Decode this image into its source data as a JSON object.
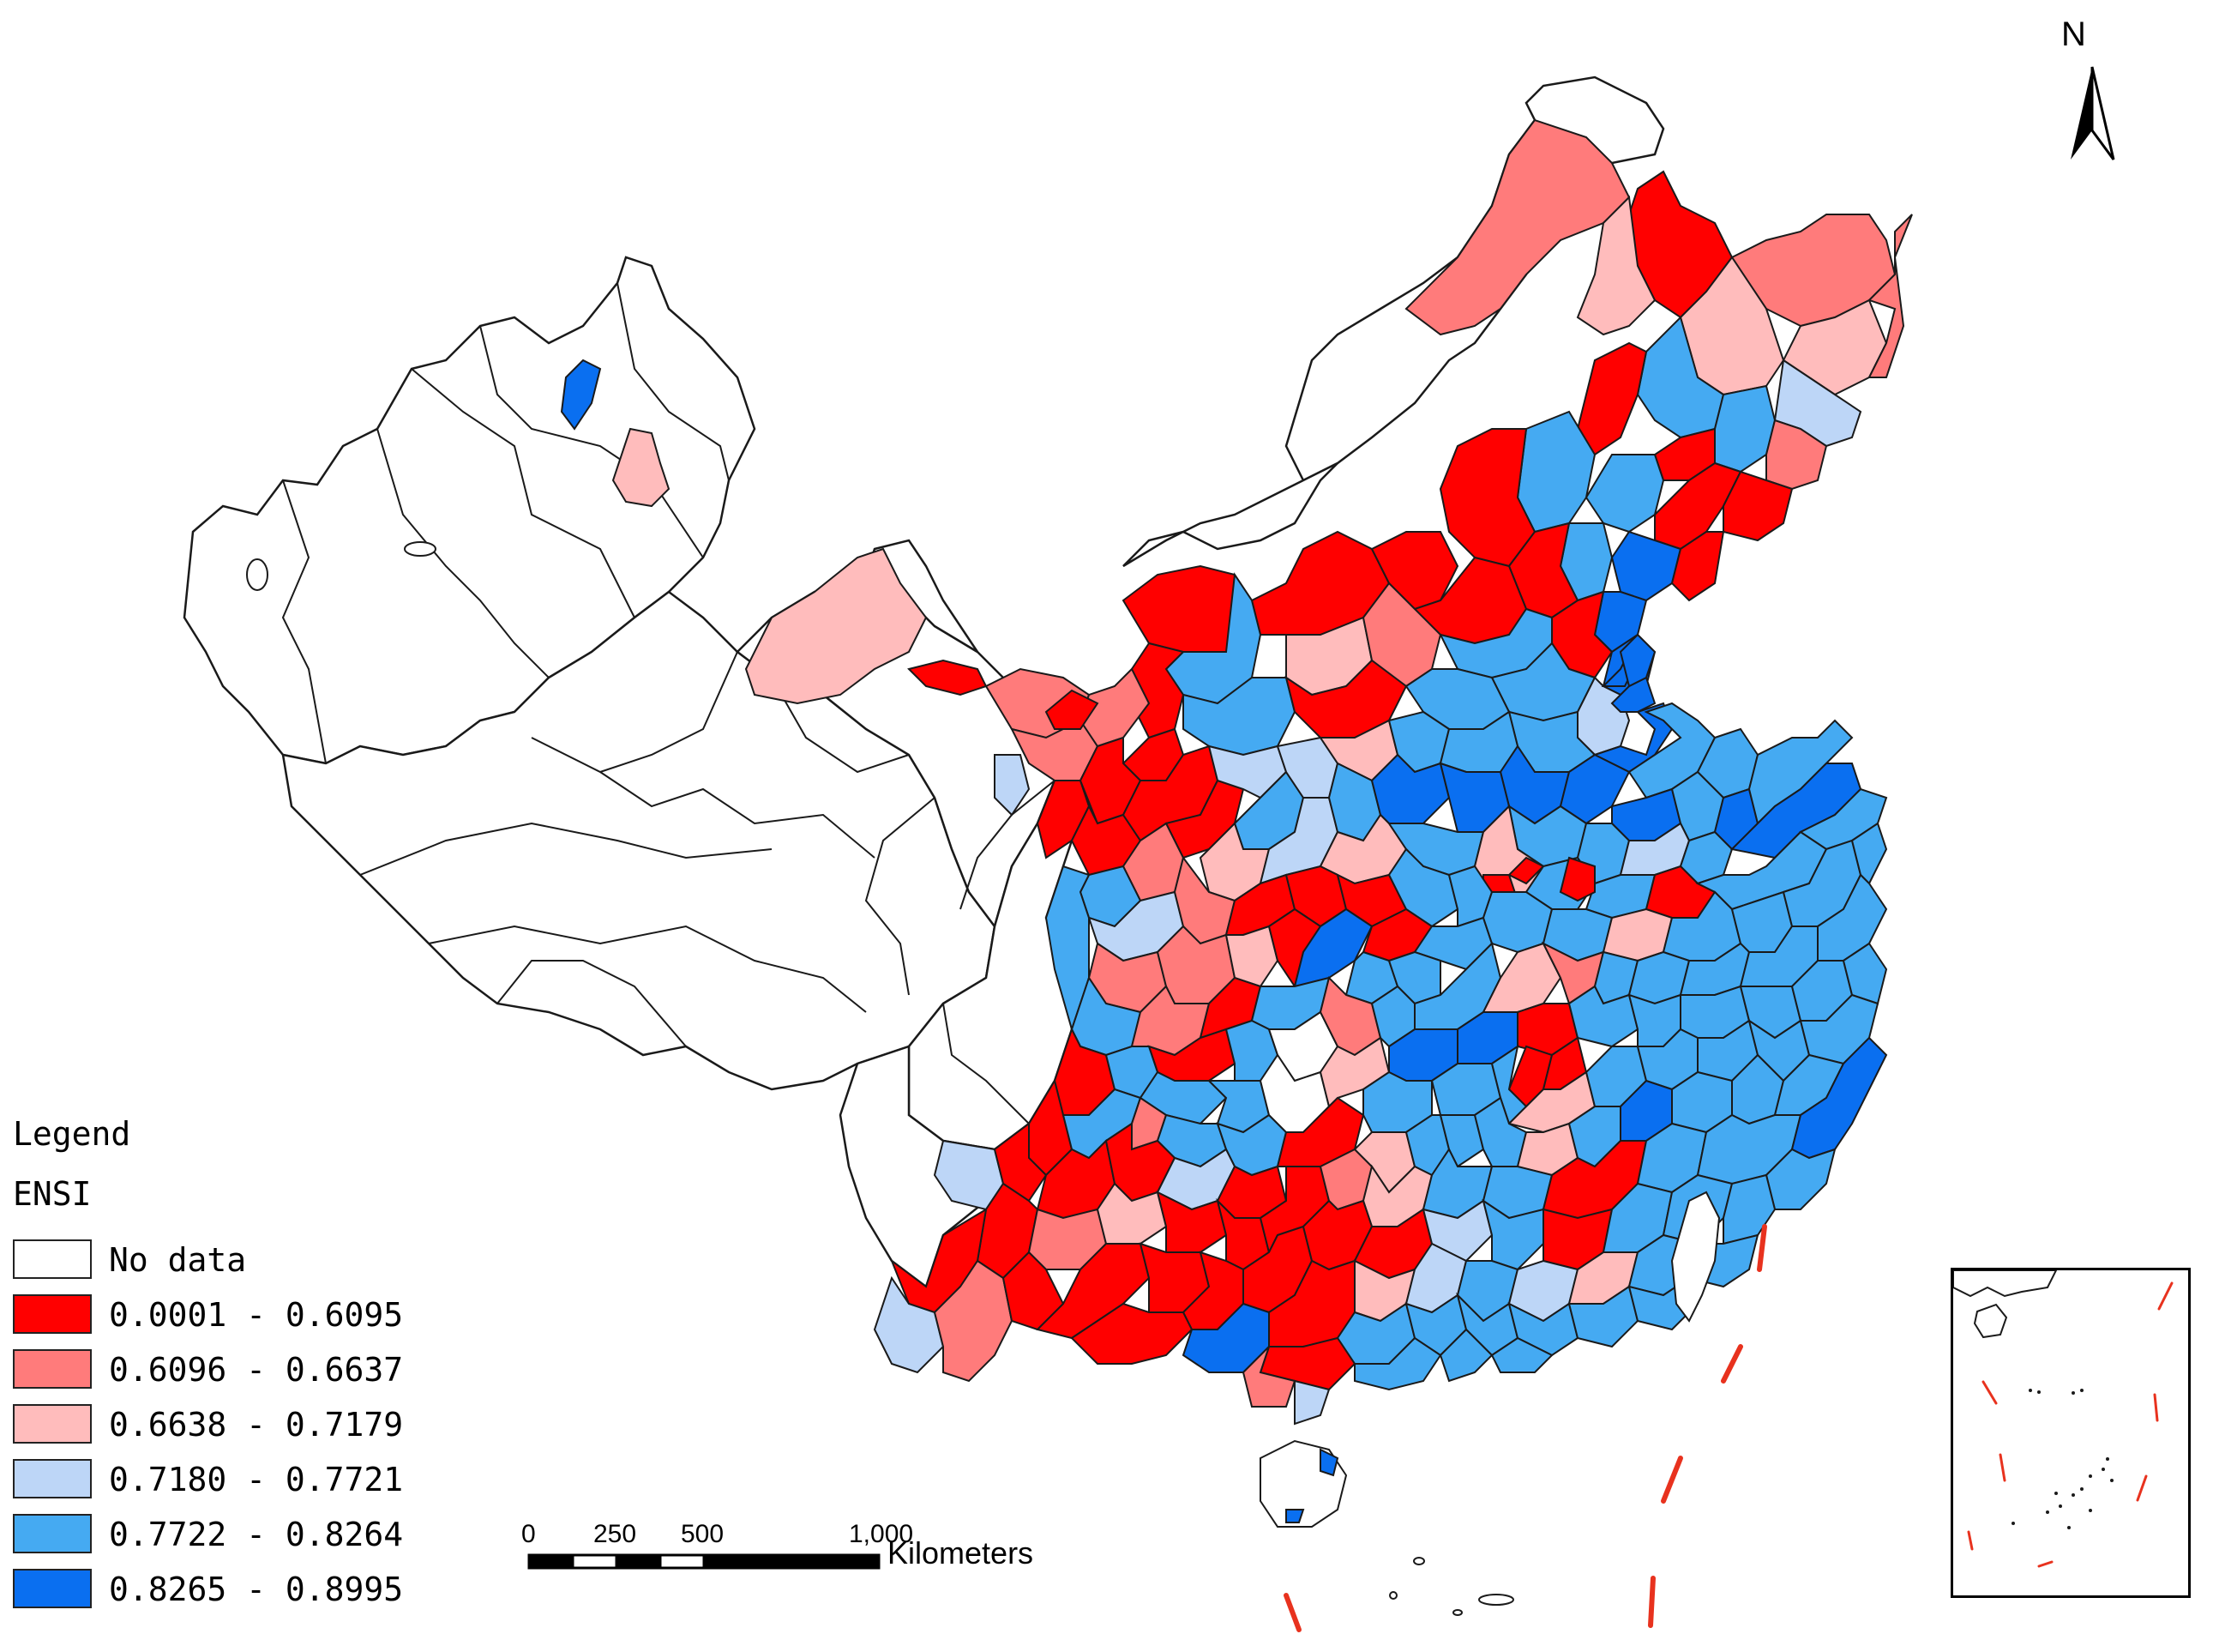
{
  "legend": {
    "title": "Legend",
    "variable": "ENSI",
    "classes": [
      {
        "label": "No data",
        "color": "#ffffff"
      },
      {
        "label": "0.0001 - 0.6095",
        "color": "#ff0000"
      },
      {
        "label": "0.6096 - 0.6637",
        "color": "#ff7b7b"
      },
      {
        "label": "0.6638 - 0.7179",
        "color": "#ffbcbc"
      },
      {
        "label": "0.7180 - 0.7721",
        "color": "#bdd6f7"
      },
      {
        "label": "0.7722 - 0.8264",
        "color": "#45aaf2"
      },
      {
        "label": "0.8265 - 0.8995",
        "color": "#0a6ff0"
      }
    ]
  },
  "scale_bar": {
    "ticks": [
      "0",
      "250",
      "500",
      "1,000"
    ],
    "unit": "Kilometers"
  },
  "north_arrow": {
    "label": "N"
  },
  "colors": {
    "outline": "#1a1a1a",
    "nine_dash": "#e8321e"
  }
}
